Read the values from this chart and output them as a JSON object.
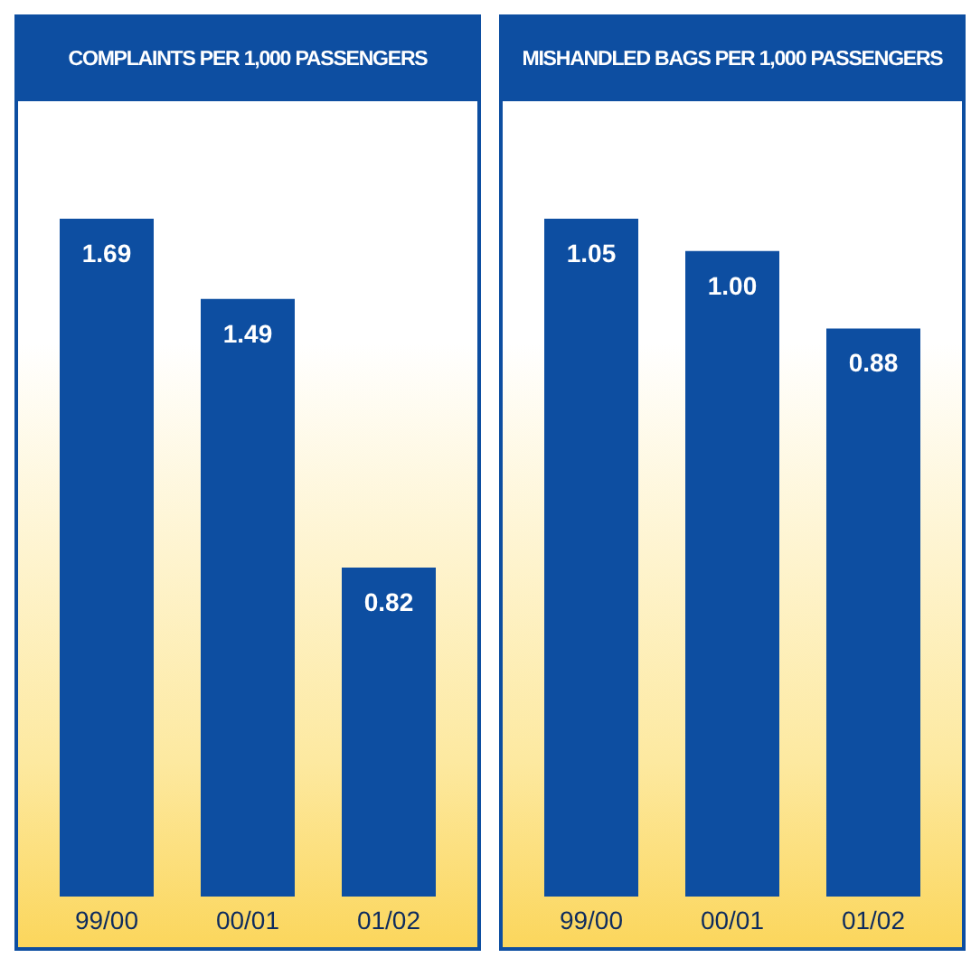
{
  "chart_data": [
    {
      "type": "bar",
      "title": "COMPLAINTS PER 1,000 PASSENGERS",
      "categories": [
        "99/00",
        "00/01",
        "01/02"
      ],
      "values": [
        1.69,
        1.49,
        0.82
      ],
      "value_labels": [
        "1.69",
        "1.49",
        "0.82"
      ],
      "color": "#0d4ea1"
    },
    {
      "type": "bar",
      "title": "MISHANDLED BAGS PER 1,000 PASSENGERS",
      "categories": [
        "99/00",
        "00/01",
        "01/02"
      ],
      "values": [
        1.05,
        1.0,
        0.88
      ],
      "value_labels": [
        "1.05",
        "1.00",
        "0.88"
      ],
      "color": "#0d4ea1"
    }
  ]
}
